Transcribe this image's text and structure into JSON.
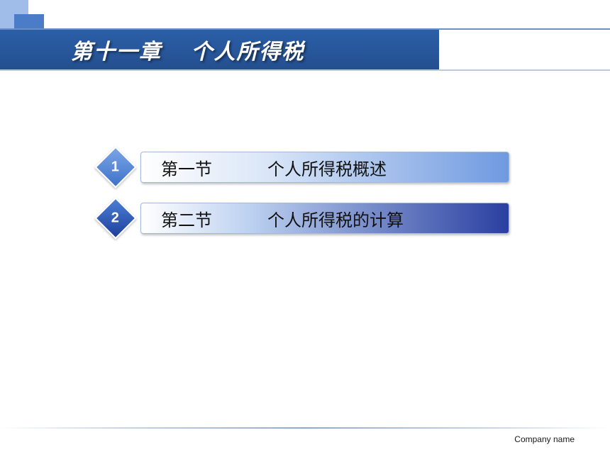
{
  "header": {
    "title": "第十一章　 个人所得税"
  },
  "items": [
    {
      "num": "1",
      "section": "第一节",
      "label": "个人所得税概述",
      "diamond_bg": "linear-gradient(135deg,#7aa5e6 0%,#3f72c9 100%)",
      "bar_bg": "linear-gradient(to right,#ffffff 0%,#d9e5f7 35%,#6f9ae0 100%)"
    },
    {
      "num": "2",
      "section": "第二节",
      "label": "个人所得税的计算",
      "diamond_bg": "linear-gradient(135deg,#4b7fd6 0%,#1f3f9b 100%)",
      "bar_bg": "linear-gradient(to right,#ffffff 0%,#bcd0f0 30%,#2a3fa0 100%)"
    }
  ],
  "footer": {
    "company": "Company name"
  },
  "colors": {
    "header_bg": "#2b5fa8",
    "corner_light": "#9fbde8",
    "corner_dark": "#4a7cc7"
  }
}
